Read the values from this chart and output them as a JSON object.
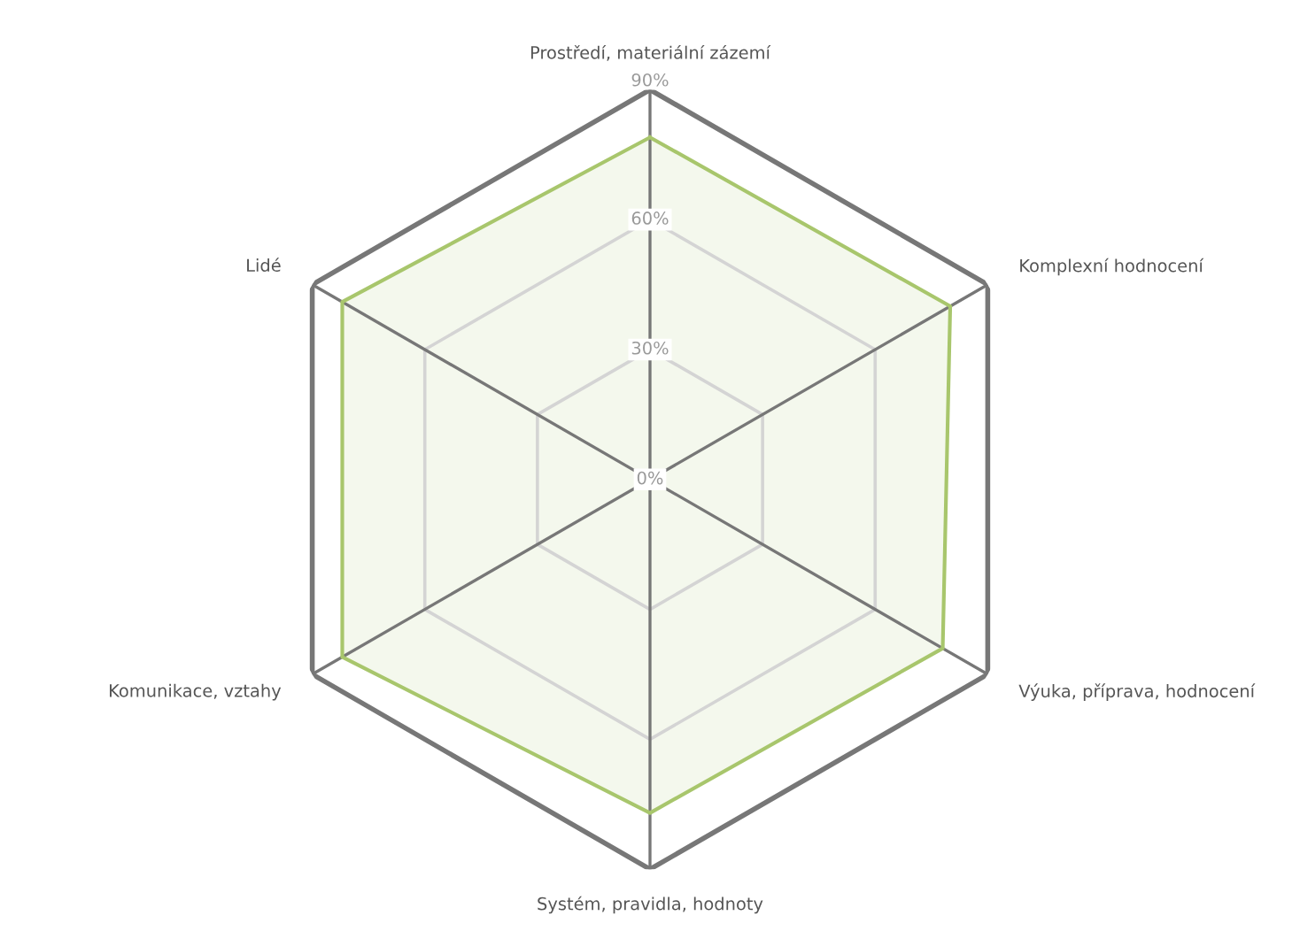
{
  "chart_data": {
    "type": "radar",
    "categories": [
      "Prostředí, materiální zázemí",
      "Komplexní hodnocení",
      "Výuka, příprava, hodnocení",
      "Systém, pravidla, hodnoty",
      "Komunikace, vztahy",
      "Lidé"
    ],
    "series": [
      {
        "color": "#a8c66c",
        "values": [
          79,
          80,
          78,
          77,
          82,
          82
        ]
      }
    ],
    "ylim": [
      0,
      90
    ],
    "yticks": [
      {
        "value": 0,
        "label": "0%"
      },
      {
        "value": 30,
        "label": "30%"
      },
      {
        "value": 60,
        "label": "60%"
      },
      {
        "value": 90,
        "label": "90%"
      }
    ],
    "grid": true,
    "legend": false
  }
}
